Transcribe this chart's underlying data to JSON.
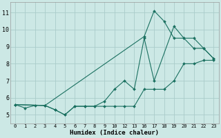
{
  "xlabel": "Humidex (Indice chaleur)",
  "bg_color": "#cce8e5",
  "grid_color": "#aaccca",
  "line_color": "#1a7060",
  "xtick_labels": [
    "0",
    "1",
    "2",
    "3",
    "4",
    "5",
    "6",
    "7",
    "8",
    "9",
    "10",
    "12",
    "13",
    "16",
    "17",
    "18",
    "19",
    "20",
    "21",
    "22",
    "23"
  ],
  "yticks": [
    5,
    6,
    7,
    8,
    9,
    10,
    11
  ],
  "ylim": [
    4.5,
    11.6
  ],
  "line1_idx": [
    0,
    1,
    2,
    3,
    4,
    5,
    6,
    7,
    8,
    9,
    10,
    11,
    12,
    13,
    14,
    15,
    16,
    17,
    18,
    19,
    20
  ],
  "line1_y": [
    5.6,
    5.4,
    5.55,
    5.55,
    5.3,
    5.0,
    5.5,
    5.5,
    5.5,
    5.5,
    5.5,
    5.5,
    5.5,
    6.5,
    6.5,
    6.5,
    7.0,
    8.0,
    8.0,
    8.2,
    8.2
  ],
  "line2_idx": [
    0,
    3,
    4,
    5,
    6,
    7,
    8,
    9,
    10,
    11,
    12,
    13,
    14,
    16,
    17,
    18,
    19,
    20
  ],
  "line2_y": [
    5.6,
    5.55,
    5.3,
    5.0,
    5.5,
    5.5,
    5.5,
    5.8,
    6.5,
    7.0,
    6.5,
    9.5,
    7.0,
    10.2,
    9.5,
    9.5,
    8.9,
    8.3
  ],
  "line3_idx": [
    0,
    3,
    13,
    14,
    15,
    16,
    17,
    18,
    19,
    20
  ],
  "line3_y": [
    5.6,
    5.55,
    9.6,
    11.1,
    10.5,
    9.5,
    9.5,
    8.9,
    8.9,
    8.3
  ]
}
